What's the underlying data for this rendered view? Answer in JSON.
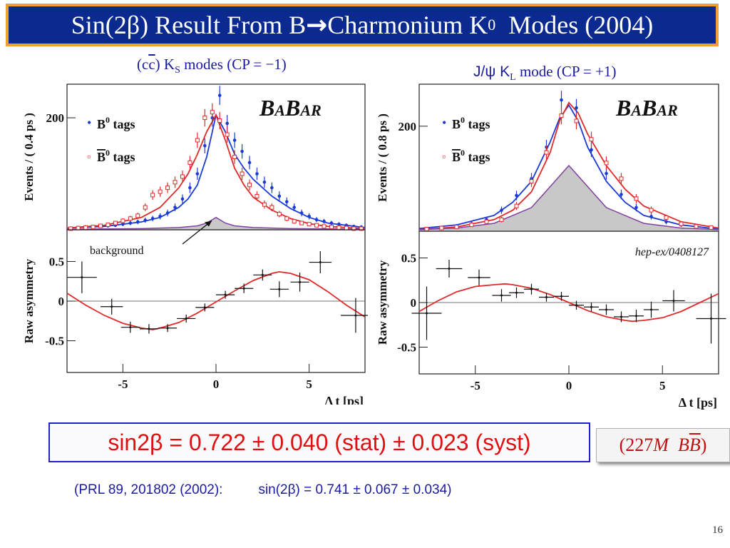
{
  "slide": {
    "title_main": "Sin(2β) Result From B",
    "title_arrow": "→",
    "title_mid": " Charmonium K",
    "title_sup": "0",
    "title_end": "  Modes (2004)",
    "left_subtitle_a": "(c",
    "left_subtitle_cbar": "c",
    "left_subtitle_b": ") K",
    "left_subtitle_sub": "S",
    "left_subtitle_c": " modes (CP = −1)",
    "right_subtitle_a": "J/ψ K",
    "right_subtitle_sub": "L",
    "right_subtitle_b": " mode (CP = +1)",
    "result": "sin2β = 0.722 ± 0.040 (stat) ± 0.023 (syst)",
    "stats_a": "(227",
    "stats_m": "M",
    "stats_b1": "B",
    "stats_b2": "B",
    "stats_c": ")",
    "prl_ref": "(PRL 89, 201802 (2002):",
    "prl_value": "sin(2β) = 0.741 ± 0.067 ± 0.034)",
    "page_number": "16"
  },
  "colors": {
    "b0": "#1a3ad6",
    "b0bar": "#e02a2a",
    "background_fill": "#c8c8c8",
    "background_curve": "#8040a0"
  },
  "chart_data": [
    {
      "type": "scatter",
      "panel": "left-events",
      "ylabel": "Events / ( 0.4 ps )",
      "logo": "BABAR",
      "xlim": [
        -8,
        8
      ],
      "ylim": [
        0,
        260
      ],
      "yticks": [
        {
          "v": 200,
          "label": "200"
        }
      ],
      "legend": [
        {
          "marker": "•",
          "pre": "B",
          "sup": "0",
          "post": "  tags",
          "bar": false,
          "color_key": "b0"
        },
        {
          "marker": "▫",
          "pre": "B",
          "sup": "0",
          "post": "  tags",
          "bar": true,
          "color_key": "b0bar"
        }
      ],
      "annotation": "background",
      "series": [
        {
          "name": "B0",
          "color_key": "b0",
          "x": [
            -7.8,
            -7.4,
            -7.0,
            -6.6,
            -6.2,
            -5.8,
            -5.4,
            -5.0,
            -4.6,
            -4.2,
            -3.8,
            -3.4,
            -3.0,
            -2.6,
            -2.2,
            -1.8,
            -1.4,
            -1.0,
            -0.6,
            -0.2,
            0.2,
            0.6,
            1.0,
            1.4,
            1.8,
            2.2,
            2.6,
            3.0,
            3.4,
            3.8,
            4.2,
            4.6,
            5.0,
            5.4,
            5.8,
            6.2,
            6.6,
            7.0,
            7.4,
            7.8
          ],
          "y": [
            3,
            4,
            5,
            5,
            6,
            7,
            8,
            10,
            12,
            14,
            17,
            20,
            24,
            30,
            40,
            55,
            75,
            100,
            150,
            200,
            240,
            190,
            160,
            140,
            120,
            100,
            85,
            75,
            60,
            50,
            40,
            30,
            24,
            18,
            15,
            12,
            10,
            8,
            6,
            5
          ]
        },
        {
          "name": "B0bar",
          "color_key": "b0bar",
          "x": [
            -7.8,
            -7.4,
            -7.0,
            -6.6,
            -6.2,
            -5.8,
            -5.4,
            -5.0,
            -4.6,
            -4.2,
            -3.8,
            -3.4,
            -3.0,
            -2.6,
            -2.2,
            -1.8,
            -1.4,
            -1.0,
            -0.6,
            -0.2,
            0.2,
            0.6,
            1.0,
            1.4,
            1.8,
            2.2,
            2.6,
            3.0,
            3.4,
            3.8,
            4.2,
            4.6,
            5.0,
            5.4,
            5.8,
            6.2,
            6.6,
            7.0,
            7.4,
            7.8
          ],
          "y": [
            2,
            3,
            4,
            5,
            7,
            9,
            12,
            16,
            20,
            25,
            40,
            62,
            68,
            75,
            85,
            95,
            120,
            160,
            200,
            210,
            195,
            170,
            130,
            100,
            80,
            60,
            45,
            40,
            28,
            20,
            15,
            12,
            10,
            8,
            6,
            5,
            4,
            3,
            2,
            2
          ]
        }
      ],
      "curves": [
        {
          "name": "B0 fit",
          "color_key": "b0",
          "x": [
            -8,
            -6,
            -4,
            -3,
            -2,
            -1.5,
            -1,
            -0.5,
            0,
            0.5,
            1,
            1.5,
            2,
            3,
            4,
            5,
            6,
            8
          ],
          "y": [
            3,
            6,
            14,
            22,
            40,
            55,
            80,
            130,
            205,
            175,
            135,
            110,
            90,
            60,
            38,
            22,
            12,
            4
          ]
        },
        {
          "name": "B0bar fit",
          "color_key": "b0bar",
          "x": [
            -8,
            -6,
            -4,
            -3,
            -2,
            -1.5,
            -1,
            -0.5,
            0,
            0.5,
            1,
            1.5,
            2,
            3,
            4,
            5,
            6,
            8
          ],
          "y": [
            3,
            8,
            22,
            40,
            75,
            100,
            135,
            175,
            205,
            160,
            110,
            80,
            58,
            35,
            20,
            11,
            6,
            2
          ]
        },
        {
          "name": "background",
          "color_key": "background_curve",
          "x": [
            -8,
            -4,
            -2,
            -1,
            -0.5,
            0,
            0.5,
            1,
            2,
            4,
            8
          ],
          "y": [
            1,
            2,
            4,
            7,
            12,
            22,
            12,
            7,
            4,
            2,
            1
          ]
        }
      ]
    },
    {
      "type": "scatter",
      "panel": "left-asymmetry",
      "ylabel": "Raw asymmetry",
      "xlabel": "Δ t [ps]",
      "xlim": [
        -8,
        8
      ],
      "ylim": [
        -0.9,
        0.9
      ],
      "xticks": [
        {
          "v": -5,
          "label": "-5"
        },
        {
          "v": 0,
          "label": "0"
        },
        {
          "v": 5,
          "label": "5"
        }
      ],
      "yticks": [
        {
          "v": 0.5,
          "label": "0.5"
        },
        {
          "v": 0,
          "label": "0"
        },
        {
          "v": -0.5,
          "label": "-0.5"
        }
      ],
      "points": {
        "x": [
          -7.2,
          -5.6,
          -4.6,
          -3.6,
          -2.6,
          -1.6,
          -0.6,
          0.5,
          1.5,
          2.5,
          3.4,
          4.5,
          5.6,
          7.5
        ],
        "y": [
          0.3,
          -0.07,
          -0.33,
          -0.35,
          -0.34,
          -0.22,
          -0.08,
          0.08,
          0.16,
          0.33,
          0.15,
          0.24,
          0.49,
          -0.18
        ],
        "xerr": [
          0.8,
          0.6,
          0.5,
          0.5,
          0.5,
          0.5,
          0.5,
          0.5,
          0.5,
          0.5,
          0.5,
          0.5,
          0.6,
          0.8
        ],
        "yerr": [
          0.2,
          0.1,
          0.07,
          0.06,
          0.05,
          0.05,
          0.05,
          0.05,
          0.06,
          0.07,
          0.1,
          0.12,
          0.14,
          0.22
        ]
      },
      "curve": {
        "color_key": "b0bar",
        "x": [
          -8,
          -7,
          -6,
          -5,
          -4,
          -3.4,
          -3,
          -2,
          -1,
          0,
          1,
          2,
          3,
          3.4,
          4,
          5,
          6,
          7,
          8
        ],
        "y": [
          0.1,
          -0.05,
          -0.18,
          -0.28,
          -0.34,
          -0.36,
          -0.34,
          -0.27,
          -0.15,
          -0.01,
          0.13,
          0.26,
          0.35,
          0.37,
          0.35,
          0.27,
          0.12,
          -0.05,
          -0.2
        ]
      }
    },
    {
      "type": "scatter",
      "panel": "right-events",
      "ylabel": "Events / ( 0.8 ps )",
      "logo": "BABAR",
      "xlim": [
        -8,
        8
      ],
      "ylim": [
        0,
        280
      ],
      "yticks": [
        {
          "v": 200,
          "label": "200"
        }
      ],
      "legend": [
        {
          "marker": "•",
          "pre": "B",
          "sup": "0",
          "post": "  tags",
          "bar": false,
          "color_key": "b0"
        },
        {
          "marker": "▫",
          "pre": "B",
          "sup": "0",
          "post": "  tags",
          "bar": true,
          "color_key": "b0bar"
        }
      ],
      "series": [
        {
          "name": "B0",
          "color_key": "b0",
          "x": [
            -7.6,
            -6.8,
            -6.0,
            -5.2,
            -4.4,
            -3.6,
            -2.8,
            -2.0,
            -1.2,
            -0.4,
            0.4,
            1.2,
            2.0,
            2.8,
            3.6,
            4.4,
            5.2,
            6.0,
            6.8,
            7.6
          ],
          "y": [
            5,
            7,
            10,
            14,
            22,
            40,
            68,
            100,
            160,
            250,
            235,
            155,
            110,
            70,
            45,
            28,
            18,
            12,
            8,
            6
          ]
        },
        {
          "name": "B0bar",
          "color_key": "b0bar",
          "x": [
            -7.6,
            -6.8,
            -6.0,
            -5.2,
            -4.4,
            -3.6,
            -2.8,
            -2.0,
            -1.2,
            -0.4,
            0.4,
            1.2,
            2.0,
            2.8,
            3.6,
            4.4,
            5.2,
            6.0,
            6.8,
            7.6
          ],
          "y": [
            4,
            6,
            8,
            12,
            18,
            22,
            48,
            95,
            150,
            220,
            210,
            175,
            130,
            100,
            62,
            40,
            26,
            14,
            9,
            7
          ]
        }
      ],
      "curves": [
        {
          "name": "B0 fit",
          "color_key": "b0",
          "x": [
            -8,
            -6,
            -4,
            -3,
            -2,
            -1,
            -0.5,
            0,
            0.5,
            1,
            2,
            3,
            4,
            6,
            8
          ],
          "y": [
            5,
            12,
            30,
            55,
            95,
            170,
            215,
            240,
            210,
            160,
            95,
            55,
            30,
            12,
            4
          ]
        },
        {
          "name": "B0bar fit",
          "color_key": "b0bar",
          "x": [
            -8,
            -6,
            -4,
            -3,
            -2,
            -1,
            -0.5,
            0,
            0.5,
            1,
            2,
            3,
            4,
            6,
            8
          ],
          "y": [
            3,
            8,
            22,
            40,
            75,
            150,
            210,
            245,
            225,
            185,
            125,
            80,
            48,
            18,
            6
          ]
        },
        {
          "name": "background",
          "color_key": "background_curve",
          "x": [
            -8,
            -6,
            -4,
            -2,
            -1,
            0,
            1,
            2,
            4,
            6,
            8
          ],
          "y": [
            3,
            6,
            15,
            45,
            85,
            125,
            85,
            45,
            15,
            6,
            3
          ]
        }
      ]
    },
    {
      "type": "scatter",
      "panel": "right-asymmetry",
      "ylabel": "Raw asymmetry",
      "xlabel": "Δ t [ps]",
      "annotation": "hep-ex/0408127",
      "xlim": [
        -8,
        8
      ],
      "ylim": [
        -0.8,
        0.8
      ],
      "xticks": [
        {
          "v": -5,
          "label": "-5"
        },
        {
          "v": 0,
          "label": "0"
        },
        {
          "v": 5,
          "label": "5"
        }
      ],
      "yticks": [
        {
          "v": 0.5,
          "label": "0.5"
        },
        {
          "v": 0,
          "label": "0"
        },
        {
          "v": -0.5,
          "label": "-0.5"
        }
      ],
      "points": {
        "x": [
          -7.6,
          -6.4,
          -4.8,
          -3.6,
          -2.8,
          -2.0,
          -1.2,
          -0.4,
          0.4,
          1.2,
          2.0,
          2.8,
          3.6,
          4.4,
          5.6,
          7.6
        ],
        "y": [
          -0.12,
          0.38,
          0.28,
          0.08,
          0.11,
          0.15,
          0.06,
          0.07,
          -0.03,
          -0.05,
          -0.08,
          -0.16,
          -0.15,
          -0.08,
          0.02,
          -0.18
        ],
        "xerr": [
          0.8,
          0.7,
          0.6,
          0.5,
          0.4,
          0.4,
          0.4,
          0.4,
          0.4,
          0.4,
          0.4,
          0.4,
          0.4,
          0.4,
          0.6,
          0.8
        ],
        "yerr": [
          0.3,
          0.1,
          0.09,
          0.07,
          0.06,
          0.06,
          0.05,
          0.05,
          0.05,
          0.05,
          0.06,
          0.06,
          0.07,
          0.09,
          0.12,
          0.28
        ]
      },
      "curve": {
        "color_key": "b0bar",
        "x": [
          -8,
          -7,
          -6,
          -5,
          -4,
          -3.4,
          -3,
          -2,
          -1,
          0,
          1,
          2,
          3,
          3.4,
          4,
          5,
          6,
          7,
          8
        ],
        "y": [
          -0.1,
          0.02,
          0.12,
          0.18,
          0.2,
          0.21,
          0.2,
          0.16,
          0.09,
          0.0,
          -0.09,
          -0.16,
          -0.2,
          -0.21,
          -0.2,
          -0.17,
          -0.1,
          0.0,
          0.1
        ]
      }
    }
  ]
}
